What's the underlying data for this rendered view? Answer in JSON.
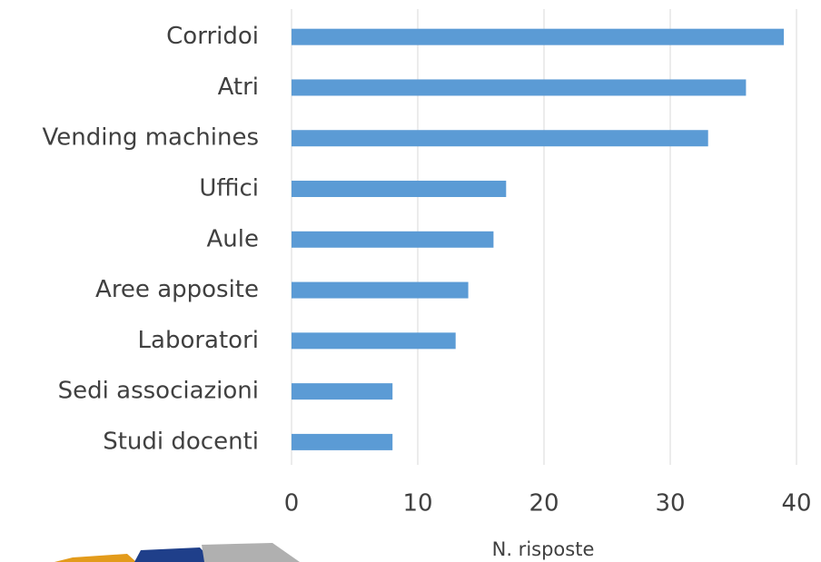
{
  "chart_data": {
    "type": "bar",
    "orientation": "horizontal",
    "categories": [
      "Corridoi",
      "Atri",
      "Vending machines",
      "Uffici",
      "Aule",
      "Aree apposite",
      "Laboratori",
      "Sedi associazioni",
      "Studi docenti"
    ],
    "values": [
      39,
      36,
      33,
      17,
      16,
      14,
      13,
      8,
      8
    ],
    "color": "#5b9bd5",
    "xlim": [
      0,
      40
    ],
    "xticks": [
      0,
      10,
      20,
      30,
      40
    ],
    "x_label": "N. risposte",
    "grid": true
  }
}
